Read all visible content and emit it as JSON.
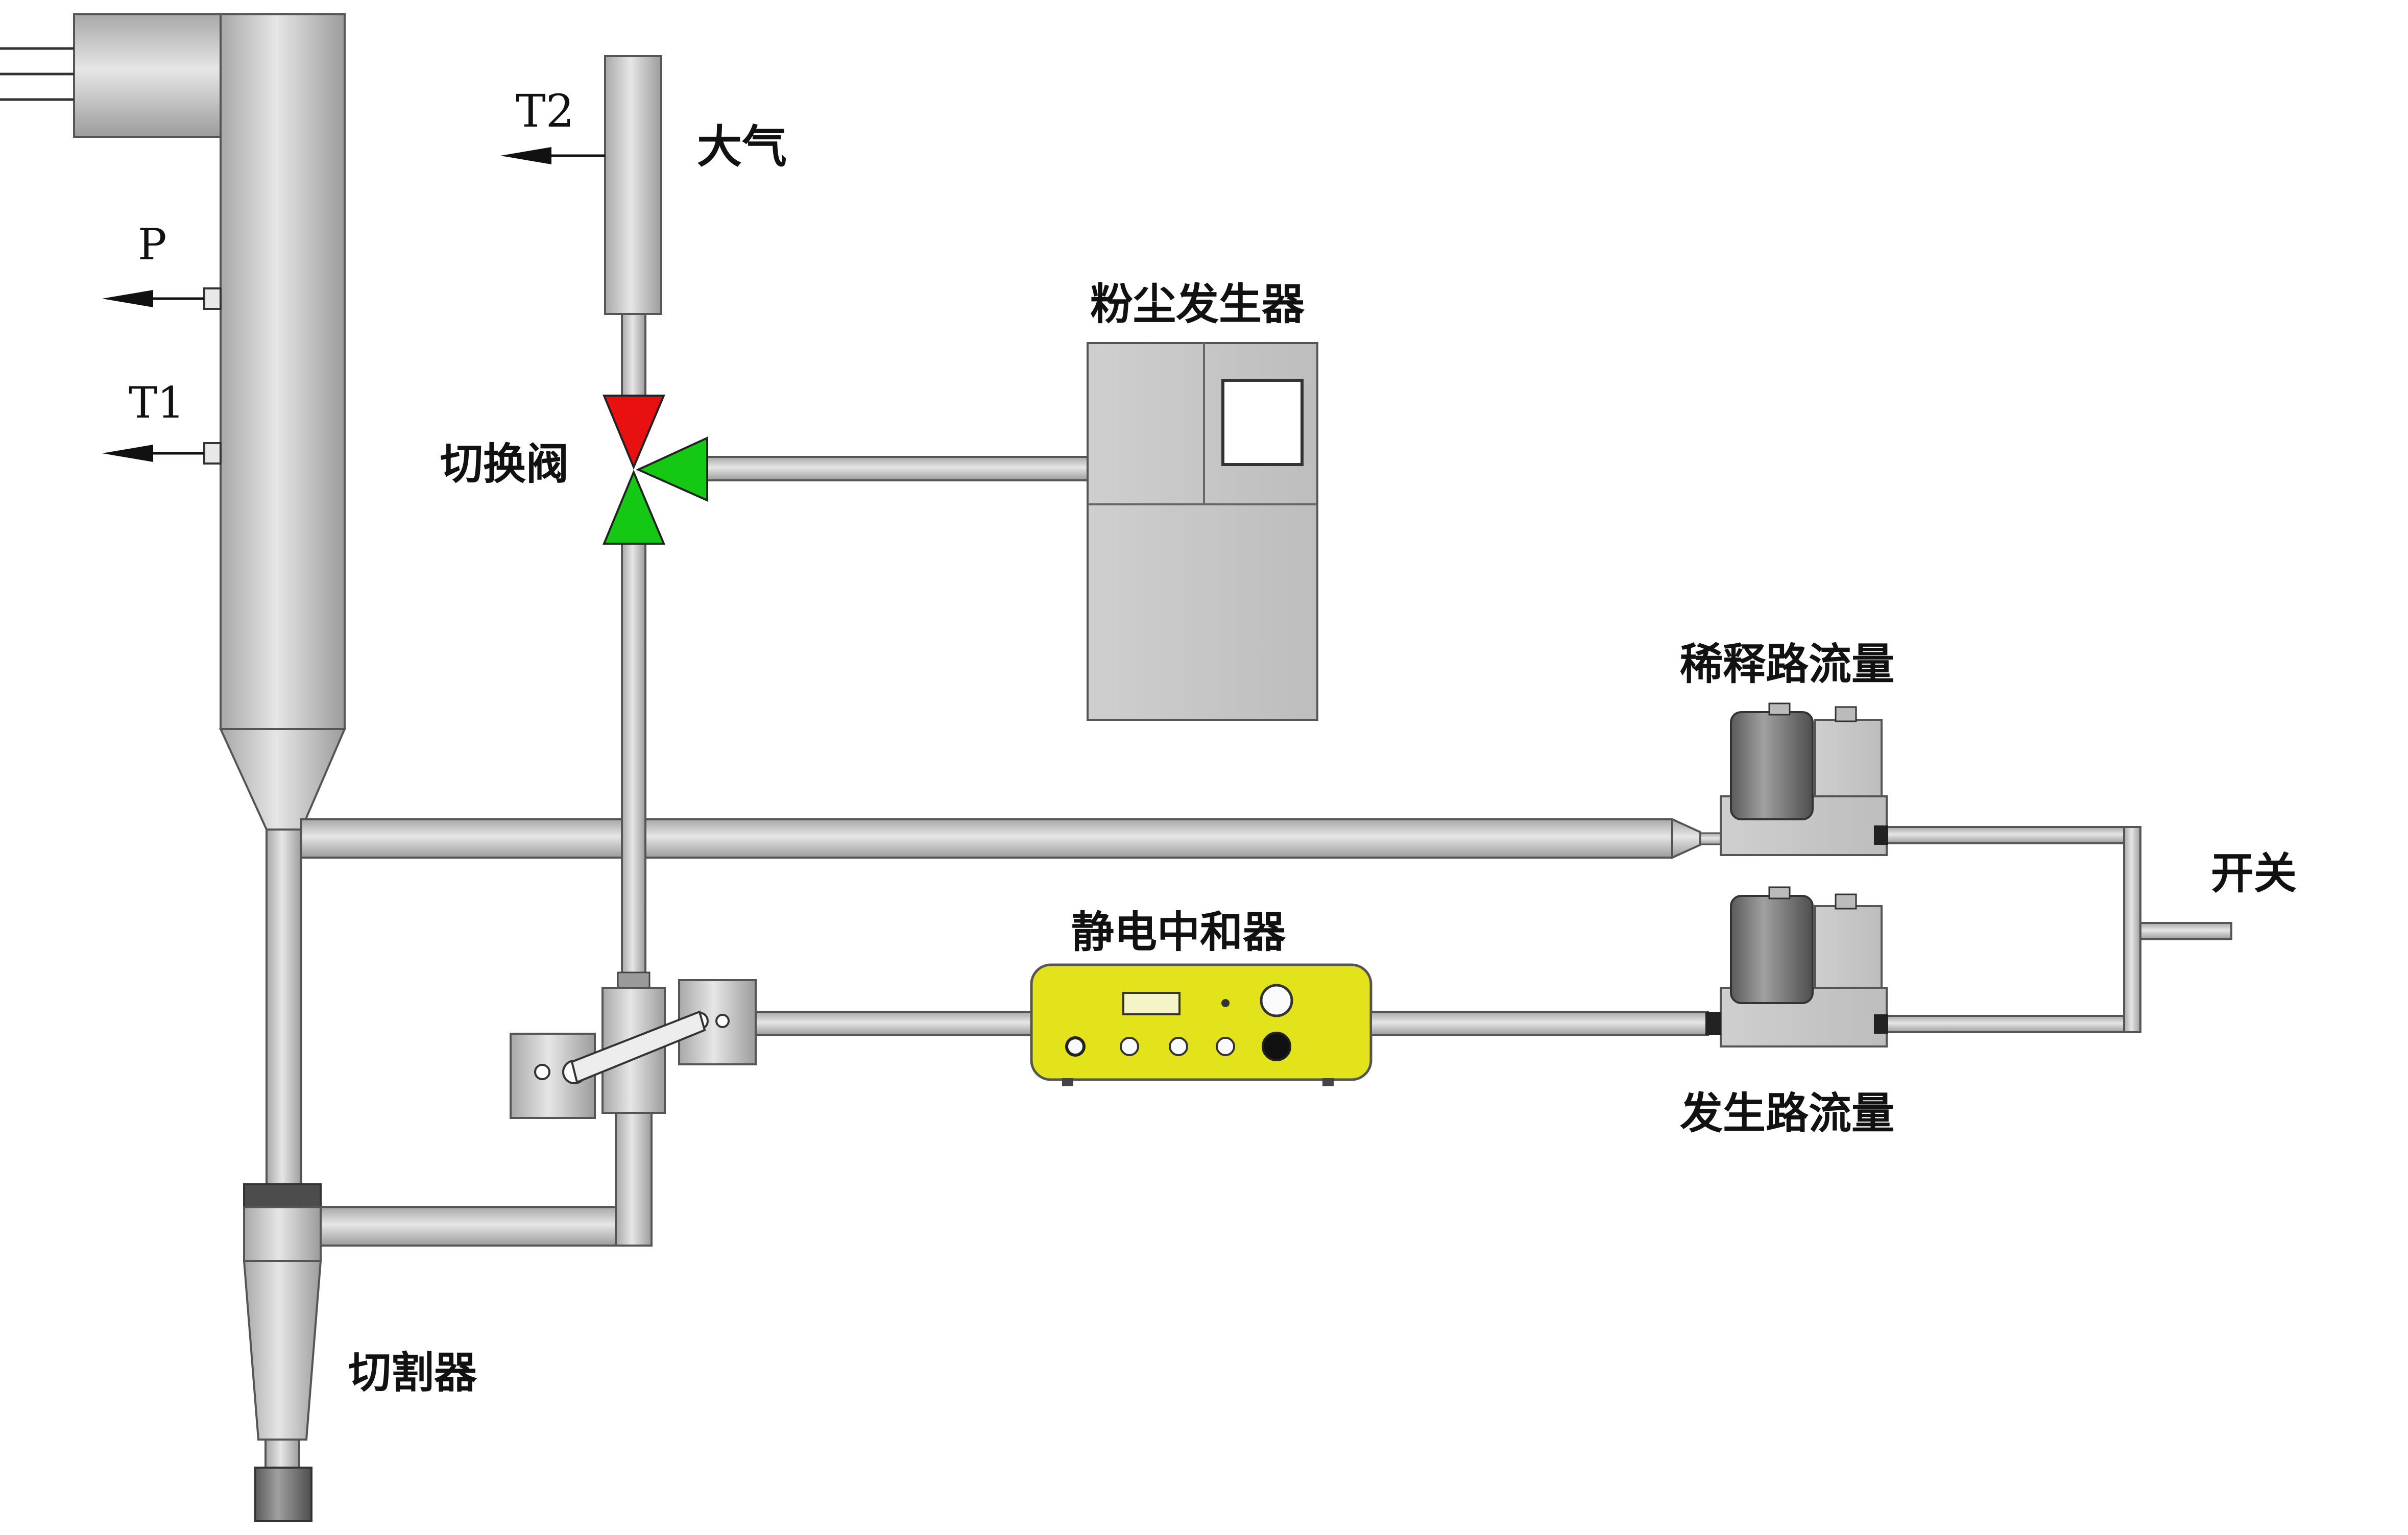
{
  "labels": {
    "t2": "T2",
    "atmosphere": "大气",
    "p": "P",
    "t1": "T1",
    "switch_valve": "切换阀",
    "dust_generator": "粉尘发生器",
    "dilution_flow": "稀释路流量",
    "on_off": "开关",
    "static_neutralizer": "静电中和器",
    "generation_flow": "发生路流量",
    "cutter": "切割器"
  },
  "colors": {
    "pipe": "#c4c4c4",
    "pipe_highlight": "#e2e2e2",
    "pipe_outline": "#555555",
    "valve_top": "#e81010",
    "valve_green": "#14c814",
    "neutralizer": "#e3e31c",
    "instrument_gray": "#d0d0d0",
    "meter_dark": "#606060"
  }
}
